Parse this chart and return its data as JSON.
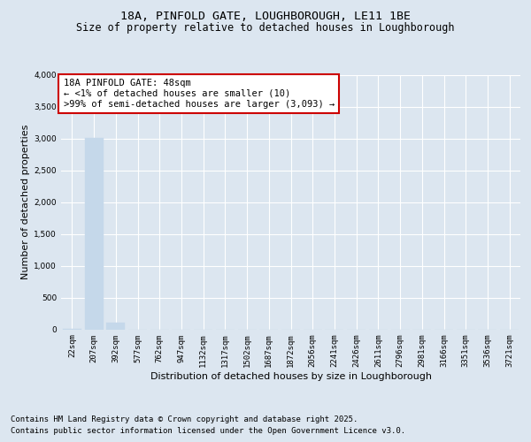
{
  "title_line1": "18A, PINFOLD GATE, LOUGHBOROUGH, LE11 1BE",
  "title_line2": "Size of property relative to detached houses in Loughborough",
  "xlabel": "Distribution of detached houses by size in Loughborough",
  "ylabel": "Number of detached properties",
  "categories": [
    "22sqm",
    "207sqm",
    "392sqm",
    "577sqm",
    "762sqm",
    "947sqm",
    "1132sqm",
    "1317sqm",
    "1502sqm",
    "1687sqm",
    "1872sqm",
    "2056sqm",
    "2241sqm",
    "2426sqm",
    "2611sqm",
    "2796sqm",
    "2981sqm",
    "3166sqm",
    "3351sqm",
    "3536sqm",
    "3721sqm"
  ],
  "values": [
    10,
    3010,
    105,
    0,
    0,
    0,
    0,
    0,
    0,
    0,
    0,
    0,
    0,
    0,
    0,
    0,
    0,
    0,
    0,
    0,
    0
  ],
  "bar_color": "#c5d8ea",
  "bar_edge_color": "#c5d8ea",
  "annotation_box_text": "18A PINFOLD GATE: 48sqm\n← <1% of detached houses are smaller (10)\n>99% of semi-detached houses are larger (3,093) →",
  "annotation_box_edge_color": "#cc0000",
  "annotation_box_face_color": "#ffffff",
  "ylim": [
    0,
    4000
  ],
  "yticks": [
    0,
    500,
    1000,
    1500,
    2000,
    2500,
    3000,
    3500,
    4000
  ],
  "background_color": "#dce6f0",
  "plot_background_color": "#dce6f0",
  "grid_color": "#ffffff",
  "footnote_line1": "Contains HM Land Registry data © Crown copyright and database right 2025.",
  "footnote_line2": "Contains public sector information licensed under the Open Government Licence v3.0.",
  "title_fontsize": 9.5,
  "subtitle_fontsize": 8.5,
  "annotation_fontsize": 7.5,
  "axis_label_fontsize": 8,
  "tick_fontsize": 6.5,
  "footnote_fontsize": 6.5,
  "ylabel_fontsize": 8
}
